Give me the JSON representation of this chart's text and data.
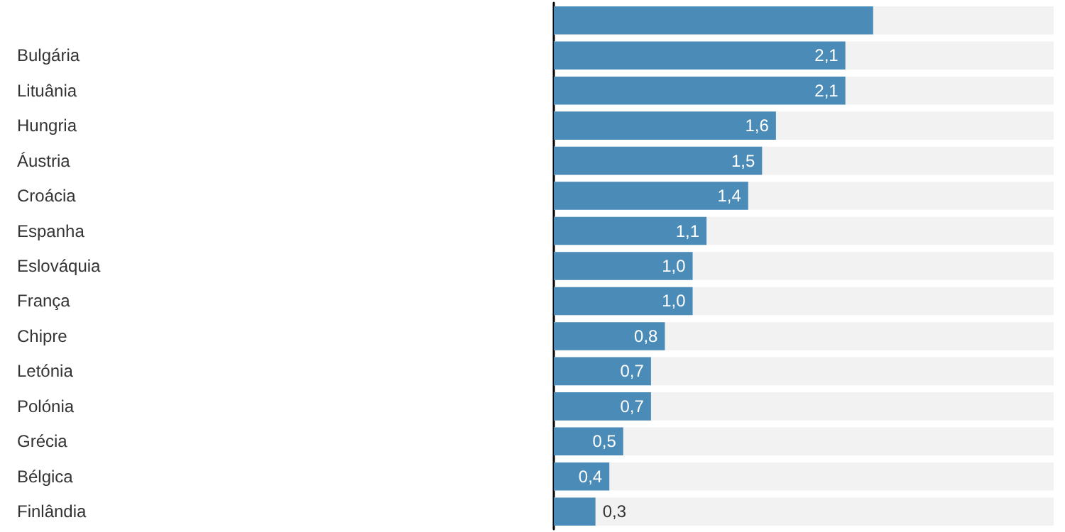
{
  "chart_data": {
    "type": "bar",
    "orientation": "horizontal",
    "categories": [
      null,
      "Bulgária",
      "Lituânia",
      "Hungria",
      "Áustria",
      "Croácia",
      "Espanha",
      "Eslováquia",
      "França",
      "Chipre",
      "Letónia",
      "Polónia",
      "Grécia",
      "Bélgica",
      "Finlândia"
    ],
    "values": [
      2.3,
      2.1,
      2.1,
      1.6,
      1.5,
      1.4,
      1.1,
      1.0,
      1.0,
      0.8,
      0.7,
      0.7,
      0.5,
      0.4,
      0.3
    ],
    "value_labels": [
      null,
      "2,1",
      "2,1",
      "1,6",
      "1,5",
      "1,4",
      "1,1",
      "1,0",
      "1,0",
      "0,8",
      "0,7",
      "0,7",
      "0,5",
      "0,4",
      "0,3"
    ],
    "color": "#4a8bb7",
    "xlim": [
      0,
      3.6
    ],
    "tick_labels": "y"
  }
}
